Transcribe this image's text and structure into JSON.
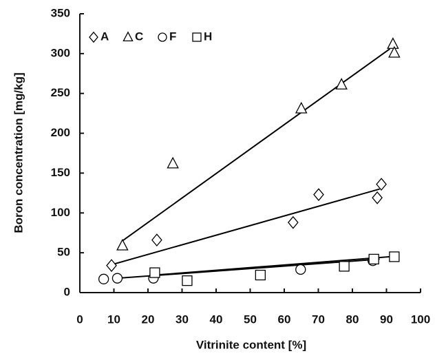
{
  "chart_data": {
    "type": "scatter",
    "xlabel": "Vitrinite content [%]",
    "ylabel": "Boron concentration [mg/kg]",
    "xlim": [
      0,
      100
    ],
    "xticks": [
      0,
      10,
      20,
      30,
      40,
      50,
      60,
      70,
      80,
      90,
      100
    ],
    "ylim": [
      0,
      350
    ],
    "yticks": [
      0,
      50,
      100,
      150,
      200,
      250,
      300,
      350
    ],
    "legend": "upper left",
    "series": [
      {
        "name": "A",
        "marker": "diamond",
        "color": "#000000",
        "x": [
          9.3,
          22.6,
          62.6,
          70.1,
          87.3,
          88.5
        ],
        "values": [
          34,
          66,
          88,
          123,
          119,
          136
        ],
        "fit_x": [
          9.3,
          88
        ],
        "fit_y": [
          35,
          130
        ]
      },
      {
        "name": "C",
        "marker": "triangle",
        "color": "#000000",
        "x": [
          12.5,
          27.3,
          65,
          76.8,
          91.9,
          92.3
        ],
        "values": [
          59,
          162,
          231,
          261,
          312,
          301
        ],
        "fit_x": [
          12.5,
          91
        ],
        "fit_y": [
          65,
          306
        ]
      },
      {
        "name": "F",
        "marker": "circle",
        "color": "#000000",
        "x": [
          7,
          11,
          21.6,
          64.8,
          86
        ],
        "values": [
          17,
          18,
          18,
          29,
          40
        ],
        "fit_x": [
          11,
          88
        ],
        "fit_y": [
          18,
          42
        ]
      },
      {
        "name": "H",
        "marker": "square",
        "color": "#000000",
        "x": [
          22,
          31.5,
          53,
          77.6,
          86.3,
          92.3
        ],
        "values": [
          25,
          15,
          22,
          33,
          42,
          45
        ],
        "fit_x": [
          22,
          91
        ],
        "fit_y": [
          22,
          45
        ]
      }
    ]
  }
}
